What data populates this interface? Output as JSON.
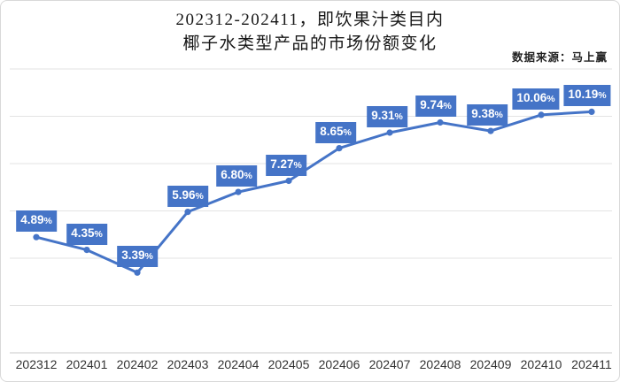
{
  "title": {
    "line1": "202312-202411，即饮果汁类目内",
    "line2": "椰子水类型产品的市场份额变化"
  },
  "source": "数据来源：马上赢",
  "colors": {
    "accent": "#4574c7",
    "label_bg": "#4574c7",
    "label_text": "#ffffff",
    "gridline": "#e3e3e3",
    "axis_line": "#c9c9c9",
    "axis_text": "#333333",
    "background": "#ffffff",
    "border": "#d8d8d8"
  },
  "chart_data": {
    "type": "line",
    "title": "202312-202411，即饮果汁类目内 椰子水类型产品的市场份额变化",
    "source": "数据来源：马上赢",
    "categories": [
      "202312",
      "202401",
      "202402",
      "202403",
      "202404",
      "202405",
      "202406",
      "202407",
      "202408",
      "202409",
      "202410",
      "202411"
    ],
    "values": [
      4.89,
      4.35,
      3.39,
      5.96,
      6.8,
      7.27,
      8.65,
      9.31,
      9.74,
      9.38,
      10.06,
      10.19
    ],
    "point_labels": [
      "4.89%",
      "4.35%",
      "3.39%",
      "5.96%",
      "6.80%",
      "7.27%",
      "8.65%",
      "9.31%",
      "9.74%",
      "9.38%",
      "10.06%",
      "10.19%"
    ],
    "unit": "%",
    "xlabel": "",
    "ylabel": "",
    "ylim": [
      0,
      12
    ],
    "grid_step": 2,
    "grid": true,
    "legend": "none"
  }
}
